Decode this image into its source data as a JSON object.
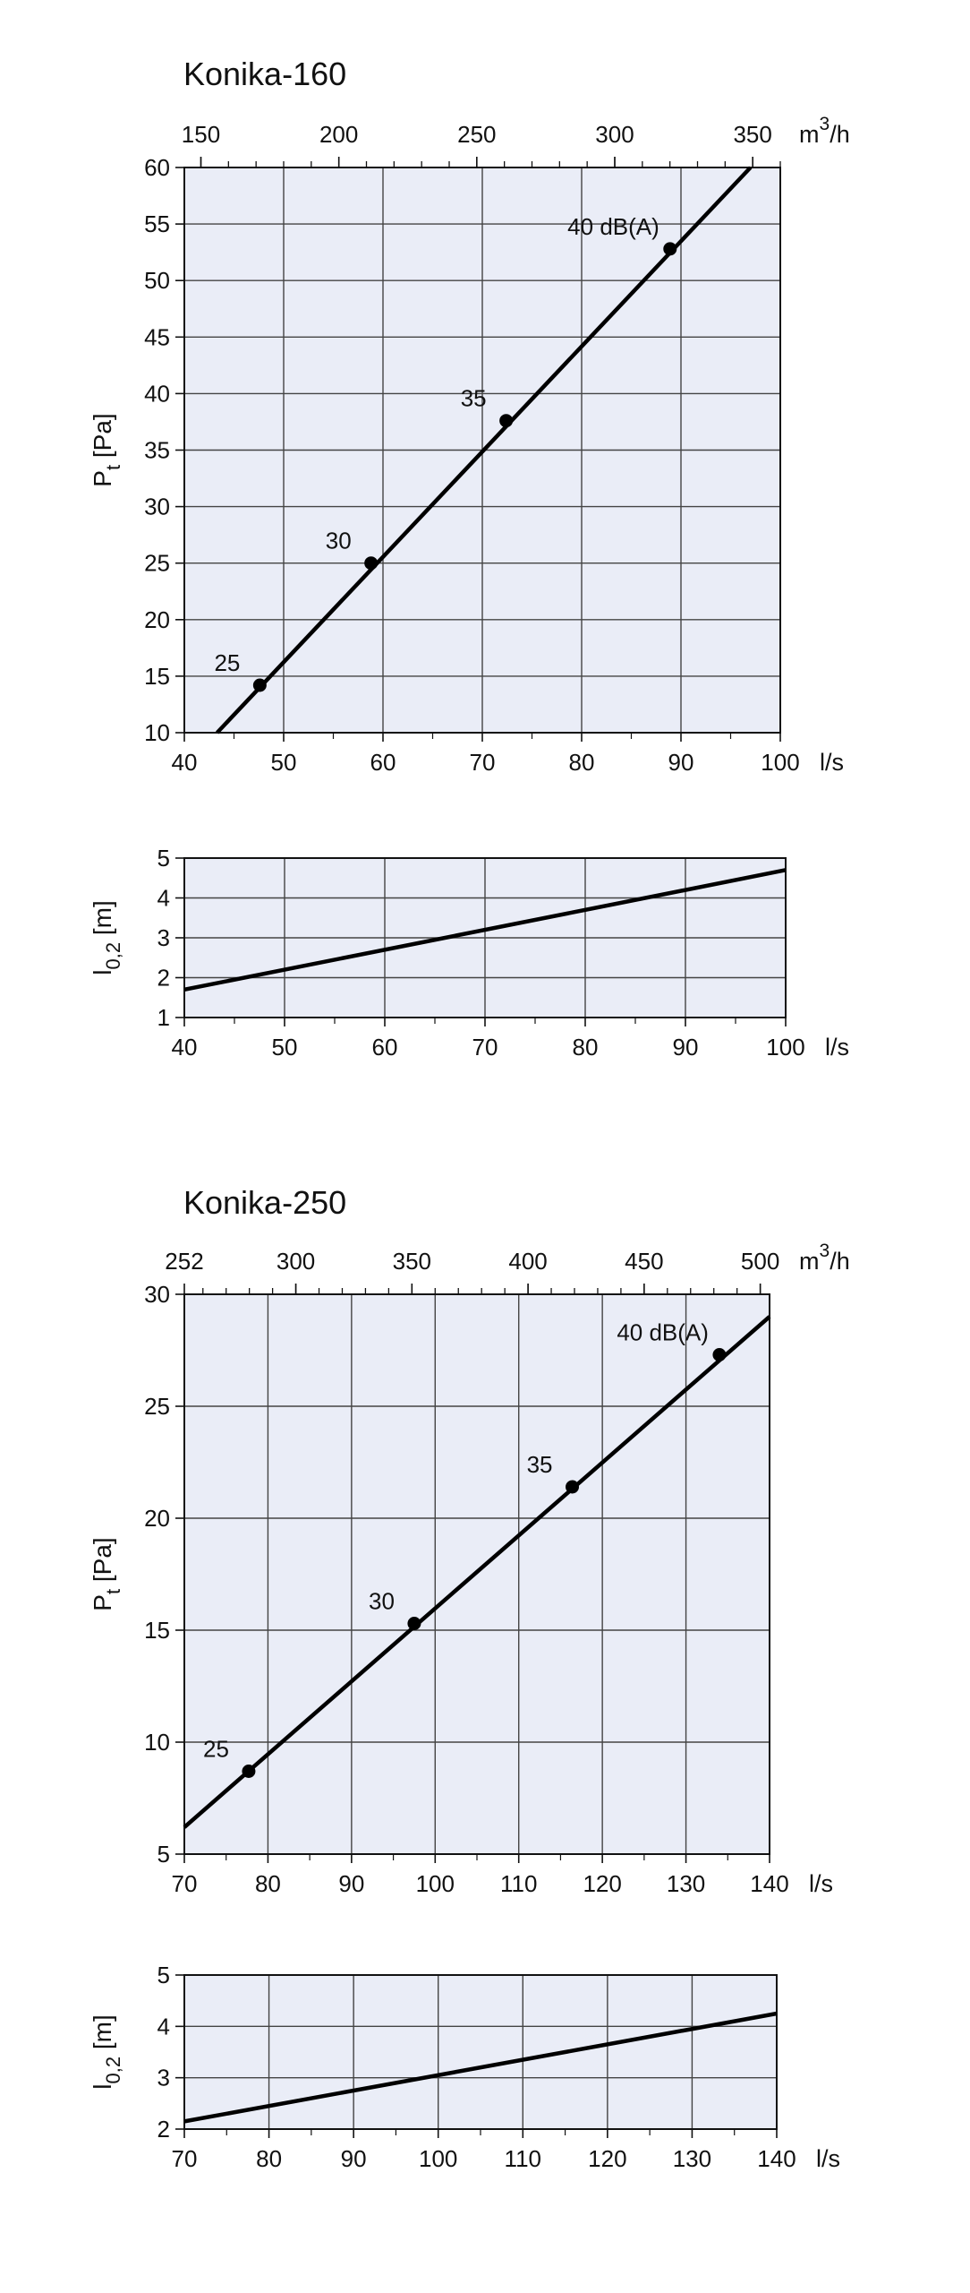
{
  "charts": [
    {
      "title": "Konika-160",
      "pressure": {
        "type": "line",
        "x_label": "l/s",
        "x_range": [
          40,
          100
        ],
        "x_ticks": [
          40,
          50,
          60,
          70,
          80,
          90,
          100
        ],
        "top_label_base": "m",
        "top_label_sup": "3",
        "top_label_tail": "/h",
        "top_ticks": [
          150,
          200,
          250,
          300,
          350
        ],
        "y_label_main": "P",
        "y_label_sub": "t",
        "y_label_tail": " [Pa]",
        "y_range": [
          10,
          60
        ],
        "y_ticks": [
          10,
          15,
          20,
          25,
          30,
          35,
          40,
          45,
          50,
          55,
          60
        ],
        "series": [
          {
            "x": [
              43.3,
              97
            ],
            "y": [
              10,
              60
            ]
          }
        ],
        "points": [
          {
            "label": "25",
            "x": 47.6,
            "y": 14.2
          },
          {
            "label": "30",
            "x": 58.8,
            "y": 25
          },
          {
            "label": "35",
            "x": 72.4,
            "y": 37.6
          },
          {
            "label": "40 dB(A)",
            "x": 88.9,
            "y": 52.8
          }
        ]
      },
      "throw": {
        "type": "line",
        "x_label": "l/s",
        "x_range": [
          40,
          100
        ],
        "x_ticks": [
          40,
          50,
          60,
          70,
          80,
          90,
          100
        ],
        "y_label_main": "l",
        "y_label_sub": "0,2",
        "y_label_tail": " [m]",
        "y_range": [
          1,
          5
        ],
        "y_ticks": [
          1,
          2,
          3,
          4,
          5
        ],
        "series": [
          {
            "x": [
              40,
              100
            ],
            "y": [
              1.7,
              4.7
            ]
          }
        ]
      }
    },
    {
      "title": "Konika-250",
      "pressure": {
        "type": "line",
        "x_label": "l/s",
        "x_range": [
          70,
          140
        ],
        "x_ticks": [
          70,
          80,
          90,
          100,
          110,
          120,
          130,
          140
        ],
        "top_label_base": "m",
        "top_label_sup": "3",
        "top_label_tail": "/h",
        "top_ticks": [
          252,
          300,
          350,
          400,
          450,
          500
        ],
        "y_label_main": "P",
        "y_label_sub": "t",
        "y_label_tail": " [Pa]",
        "y_range": [
          5,
          30
        ],
        "y_ticks": [
          5,
          10,
          15,
          20,
          25,
          30
        ],
        "series": [
          {
            "x": [
              70,
              140
            ],
            "y": [
              6.2,
              29
            ]
          }
        ],
        "points": [
          {
            "label": "25",
            "x": 77.7,
            "y": 8.7
          },
          {
            "label": "30",
            "x": 97.5,
            "y": 15.3
          },
          {
            "label": "35",
            "x": 116.4,
            "y": 21.4
          },
          {
            "label": "40 dB(A)",
            "x": 134,
            "y": 27.3
          }
        ]
      },
      "throw": {
        "type": "line",
        "x_label": "l/s",
        "x_range": [
          70,
          140
        ],
        "x_ticks": [
          70,
          80,
          90,
          100,
          110,
          120,
          130,
          140
        ],
        "y_label_main": "l",
        "y_label_sub": "0,2",
        "y_label_tail": " [m]",
        "y_range": [
          2,
          5
        ],
        "y_ticks": [
          2,
          3,
          4,
          5
        ],
        "series": [
          {
            "x": [
              70,
              140
            ],
            "y": [
              2.15,
              4.25
            ]
          }
        ]
      }
    }
  ]
}
